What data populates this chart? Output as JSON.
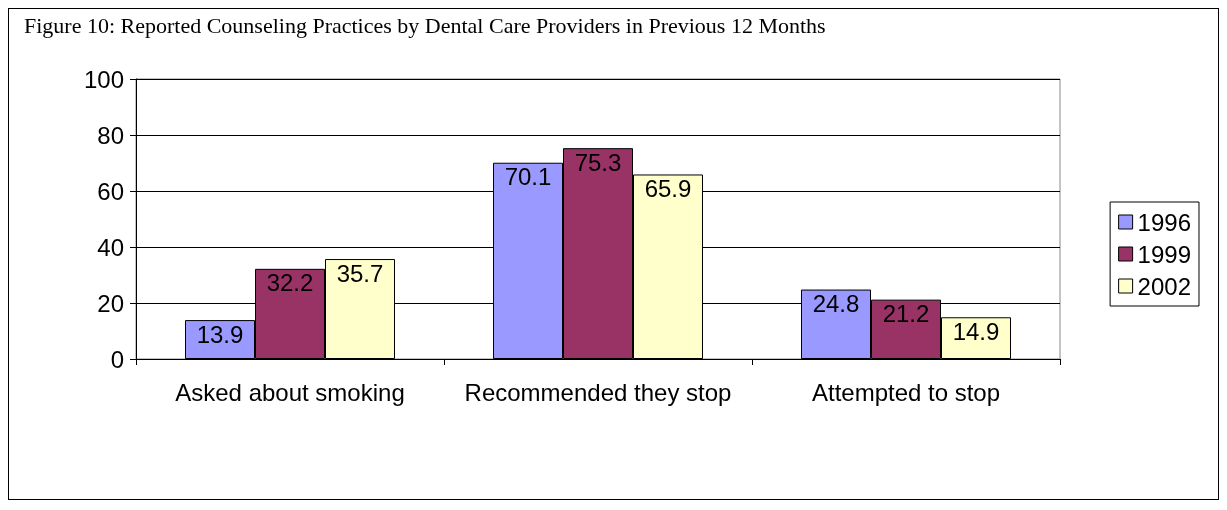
{
  "chart_data": {
    "type": "bar",
    "title": "Figure 10: Reported Counseling Practices by Dental Care Providers in Previous 12 Months",
    "categories": [
      "Asked about smoking",
      "Recommended they stop",
      "Attempted to stop"
    ],
    "series": [
      {
        "name": "1996",
        "color": "#9999ff",
        "values": [
          13.9,
          70.1,
          24.8
        ]
      },
      {
        "name": "1999",
        "color": "#993366",
        "values": [
          32.2,
          75.3,
          21.2
        ]
      },
      {
        "name": "2002",
        "color": "#ffffcc",
        "values": [
          35.7,
          65.9,
          14.9
        ]
      }
    ],
    "ylim": [
      0,
      100
    ],
    "yticks": [
      0,
      20,
      40,
      60,
      80,
      100
    ],
    "grid": "y",
    "legend": "right",
    "data_labels": true
  }
}
